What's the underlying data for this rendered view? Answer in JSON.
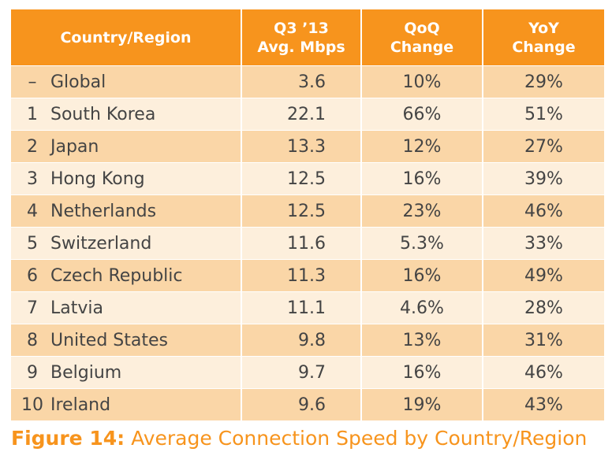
{
  "table": {
    "headers": {
      "country": "Country/Region",
      "speed_line1": "Q3 ’13",
      "speed_line2": "Avg. Mbps",
      "qoq_line1": "QoQ",
      "qoq_line2": "Change",
      "yoy_line1": "YoY",
      "yoy_line2": "Change"
    },
    "rows": [
      {
        "rank": "–",
        "country": "Global",
        "speed": "3.6",
        "qoq": "10%",
        "yoy": "29%"
      },
      {
        "rank": "1",
        "country": "South Korea",
        "speed": "22.1",
        "qoq": "66%",
        "yoy": "51%"
      },
      {
        "rank": "2",
        "country": "Japan",
        "speed": "13.3",
        "qoq": "12%",
        "yoy": "27%"
      },
      {
        "rank": "3",
        "country": "Hong Kong",
        "speed": "12.5",
        "qoq": "16%",
        "yoy": "39%"
      },
      {
        "rank": "4",
        "country": "Netherlands",
        "speed": "12.5",
        "qoq": "23%",
        "yoy": "46%"
      },
      {
        "rank": "5",
        "country": "Switzerland",
        "speed": "11.6",
        "qoq": "5.3%",
        "yoy": "33%"
      },
      {
        "rank": "6",
        "country": "Czech Republic",
        "speed": "11.3",
        "qoq": "16%",
        "yoy": "49%"
      },
      {
        "rank": "7",
        "country": "Latvia",
        "speed": "11.1",
        "qoq": "4.6%",
        "yoy": "28%"
      },
      {
        "rank": "8",
        "country": "United States",
        "speed": "9.8",
        "qoq": "13%",
        "yoy": "31%"
      },
      {
        "rank": "9",
        "country": "Belgium",
        "speed": "9.7",
        "qoq": "16%",
        "yoy": "46%"
      },
      {
        "rank": "10",
        "country": "Ireland",
        "speed": "9.6",
        "qoq": "19%",
        "yoy": "43%"
      }
    ]
  },
  "caption": {
    "figure_label": "Figure 14:",
    "text": " Average Connection Speed by Country/Region"
  },
  "colors": {
    "header_bg": "#f7941d",
    "row_dark": "#fad6a7",
    "row_light": "#fdefdc",
    "caption": "#f7941d"
  }
}
